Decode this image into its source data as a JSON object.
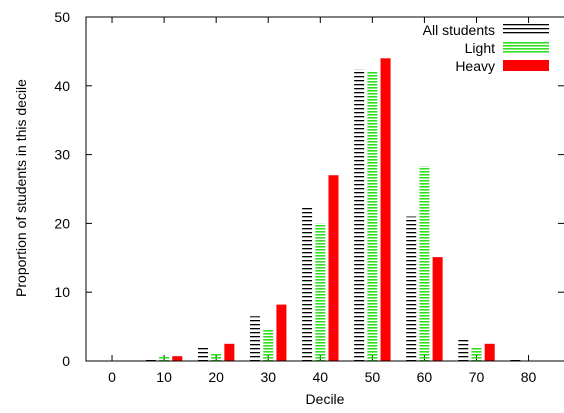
{
  "chart_data": {
    "type": "bar",
    "title": "",
    "xlabel": "Decile",
    "ylabel": "Proportion of students in this decile",
    "x_ticks": [
      0,
      10,
      20,
      30,
      40,
      50,
      60,
      70,
      80
    ],
    "y_ticks": [
      0,
      10,
      20,
      30,
      40,
      50
    ],
    "ylim": [
      0,
      50
    ],
    "xlim": [
      -5,
      87
    ],
    "grid": false,
    "legend_position": "top-right",
    "categories": [
      0,
      10,
      20,
      30,
      40,
      50,
      60,
      70,
      80
    ],
    "series": [
      {
        "name": "All students",
        "pattern": "horizontal-hatch",
        "color": "#000000",
        "values": [
          0,
          0.5,
          2.2,
          6.5,
          22.3,
          42.4,
          21.0,
          3.2,
          0.2
        ]
      },
      {
        "name": "Light",
        "pattern": "dense-hatch",
        "color": "#33dd22",
        "values": [
          0,
          0.6,
          1.2,
          4.5,
          20.0,
          42.1,
          28.3,
          1.9,
          0
        ]
      },
      {
        "name": "Heavy",
        "pattern": "solid",
        "color": "#ff0000",
        "values": [
          0,
          0.7,
          2.5,
          8.2,
          27.0,
          44.0,
          15.1,
          2.5,
          0
        ]
      }
    ]
  }
}
